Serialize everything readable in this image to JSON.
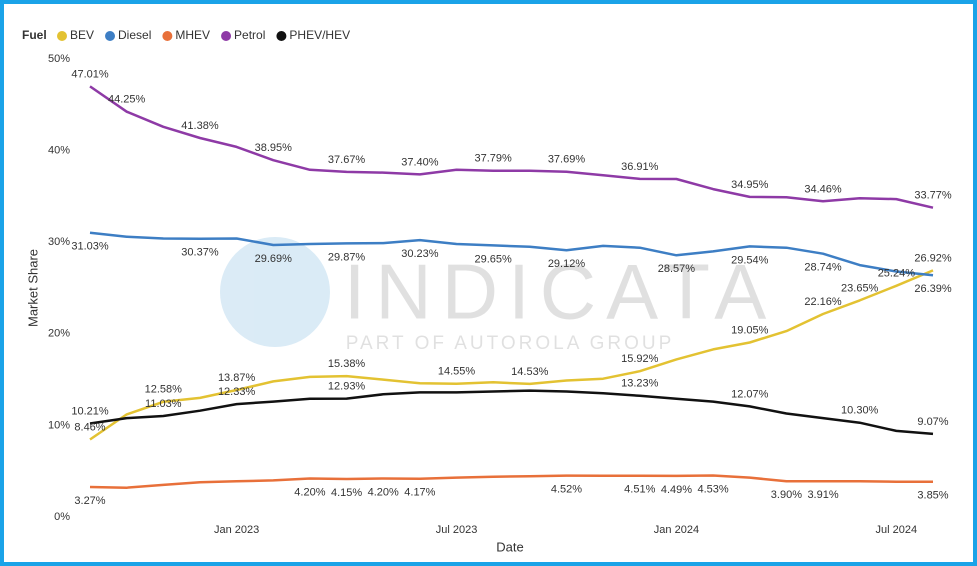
{
  "chart_data": {
    "type": "line",
    "legend_title": "Fuel",
    "legend_position": "top-left",
    "x_label": "Date",
    "y_label": "Market Share",
    "watermark": {
      "title": "INDICATA",
      "subtitle": "PART OF AUTOROLA GROUP"
    },
    "x": [
      "2022-09",
      "2022-10",
      "2022-11",
      "2022-12",
      "2023-01",
      "2023-02",
      "2023-03",
      "2023-04",
      "2023-05",
      "2023-06",
      "2023-07",
      "2023-08",
      "2023-09",
      "2023-10",
      "2023-11",
      "2023-12",
      "2024-01",
      "2024-02",
      "2024-03",
      "2024-04",
      "2024-05",
      "2024-06",
      "2024-07",
      "2024-08"
    ],
    "xticks": [
      {
        "value": "2023-01",
        "label": "Jan 2023"
      },
      {
        "value": "2023-07",
        "label": "Jul 2023"
      },
      {
        "value": "2024-01",
        "label": "Jan 2024"
      },
      {
        "value": "2024-07",
        "label": "Jul 2024"
      }
    ],
    "ylim": [
      0,
      50
    ],
    "yticks": [
      {
        "value": 0,
        "label": "0%"
      },
      {
        "value": 10,
        "label": "10%"
      },
      {
        "value": 20,
        "label": "20%"
      },
      {
        "value": 30,
        "label": "30%"
      },
      {
        "value": 40,
        "label": "40%"
      },
      {
        "value": 50,
        "label": "50%"
      }
    ],
    "grid": false,
    "series": [
      {
        "name": "BEV",
        "color": "#e3c232",
        "values": [
          8.46,
          11.2,
          12.58,
          13.0,
          13.87,
          14.8,
          15.3,
          15.38,
          15.0,
          14.6,
          14.55,
          14.7,
          14.53,
          14.9,
          15.1,
          15.92,
          17.2,
          18.3,
          19.05,
          20.3,
          22.16,
          23.65,
          25.24,
          26.92
        ],
        "value_labels": [
          "8.46%",
          null,
          "12.58%",
          null,
          "13.87%",
          null,
          null,
          "15.38%",
          null,
          null,
          "14.55%",
          null,
          "14.53%",
          null,
          null,
          "15.92%",
          null,
          null,
          "19.05%",
          null,
          "22.16%",
          "23.65%",
          "25.24%",
          "26.92%"
        ]
      },
      {
        "name": "Diesel",
        "color": "#3d7ec4",
        "values": [
          31.03,
          30.6,
          30.4,
          30.37,
          30.4,
          29.69,
          29.8,
          29.87,
          29.9,
          30.23,
          29.8,
          29.65,
          29.5,
          29.12,
          29.6,
          29.4,
          28.57,
          29.0,
          29.54,
          29.4,
          28.74,
          27.5,
          26.8,
          26.39
        ],
        "value_labels": [
          "31.03%",
          null,
          null,
          "30.37%",
          null,
          "29.69%",
          null,
          "29.87%",
          null,
          "30.23%",
          null,
          "29.65%",
          null,
          "29.12%",
          null,
          null,
          "28.57%",
          null,
          "29.54%",
          null,
          "28.74%",
          null,
          null,
          "26.39%"
        ]
      },
      {
        "name": "MHEV",
        "color": "#e8703a",
        "values": [
          3.27,
          3.2,
          3.5,
          3.8,
          3.9,
          4.0,
          4.2,
          4.15,
          4.2,
          4.17,
          4.3,
          4.4,
          4.45,
          4.52,
          4.5,
          4.51,
          4.49,
          4.53,
          4.3,
          3.9,
          3.91,
          3.9,
          3.85,
          3.85
        ],
        "value_labels": [
          "3.27%",
          null,
          null,
          null,
          null,
          null,
          "4.20%",
          "4.15%",
          "4.20%",
          "4.17%",
          null,
          null,
          null,
          "4.52%",
          null,
          "4.51%",
          "4.49%",
          "4.53%",
          null,
          "3.90%",
          "3.91%",
          null,
          null,
          "3.85%"
        ]
      },
      {
        "name": "Petrol",
        "color": "#8e3aa6",
        "values": [
          47.01,
          44.25,
          42.6,
          41.38,
          40.4,
          38.95,
          37.9,
          37.67,
          37.6,
          37.4,
          37.9,
          37.79,
          37.8,
          37.69,
          37.3,
          36.91,
          36.9,
          35.8,
          34.95,
          34.9,
          34.46,
          34.8,
          34.7,
          33.77
        ],
        "value_labels": [
          "47.01%",
          "44.25%",
          null,
          "41.38%",
          null,
          "38.95%",
          null,
          "37.67%",
          null,
          "37.40%",
          null,
          "37.79%",
          null,
          "37.69%",
          null,
          "36.91%",
          null,
          null,
          "34.95%",
          null,
          "34.46%",
          null,
          null,
          "33.77%"
        ]
      },
      {
        "name": "PHEV/HEV",
        "color": "#111111",
        "values": [
          10.21,
          10.8,
          11.03,
          11.6,
          12.33,
          12.6,
          12.9,
          12.93,
          13.4,
          13.6,
          13.6,
          13.7,
          13.8,
          13.7,
          13.5,
          13.23,
          12.9,
          12.6,
          12.07,
          11.3,
          10.8,
          10.3,
          9.4,
          9.07
        ],
        "value_labels": [
          "10.21%",
          null,
          "11.03%",
          null,
          "12.33%",
          null,
          null,
          "12.93%",
          null,
          null,
          null,
          null,
          null,
          null,
          null,
          "13.23%",
          null,
          null,
          "12.07%",
          null,
          null,
          "10.30%",
          null,
          "9.07%"
        ]
      }
    ]
  }
}
